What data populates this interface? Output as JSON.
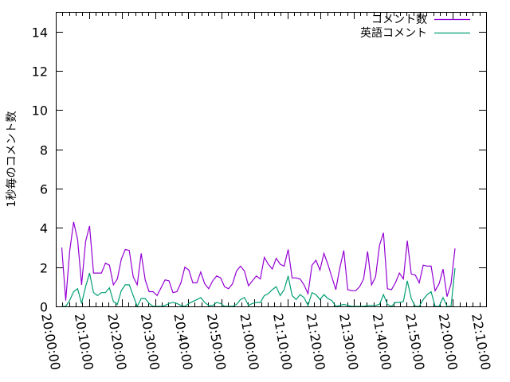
{
  "chart_data": {
    "type": "line",
    "title": "",
    "xlabel": "",
    "ylabel": "1秒毎のコメント数",
    "xlim": [
      "20:00:00",
      "22:10:00"
    ],
    "ylim": [
      0,
      15
    ],
    "x_ticks": [
      "20:00:00",
      "20:10:00",
      "20:20:00",
      "20:30:00",
      "20:40:00",
      "20:50:00",
      "21:00:00",
      "21:10:00",
      "21:20:00",
      "21:30:00",
      "21:40:00",
      "21:50:00",
      "22:00:00",
      "22:10:00"
    ],
    "y_ticks": [
      "0",
      "2",
      "4",
      "6",
      "8",
      "10",
      "12",
      "14"
    ],
    "grid": false,
    "legend_position": "top-right",
    "x": [
      "20:01:48",
      "20:03:00",
      "20:04:12",
      "20:05:24",
      "20:06:36",
      "20:07:48",
      "20:09:00",
      "20:10:12",
      "20:11:24",
      "20:12:36",
      "20:13:48",
      "20:15:00",
      "20:16:12",
      "20:17:24",
      "20:18:36",
      "20:19:48",
      "20:21:00",
      "20:22:12",
      "20:23:24",
      "20:24:36",
      "20:25:48",
      "20:27:00",
      "20:28:12",
      "20:29:24",
      "20:30:36",
      "20:31:48",
      "20:33:00",
      "20:34:12",
      "20:35:24",
      "20:36:36",
      "20:37:48",
      "20:39:00",
      "20:40:12",
      "20:41:24",
      "20:42:36",
      "20:43:48",
      "20:45:00",
      "20:46:12",
      "20:47:24",
      "20:48:36",
      "20:49:48",
      "20:51:00",
      "20:52:12",
      "20:53:24",
      "20:54:36",
      "20:55:48",
      "20:57:00",
      "20:58:12",
      "20:59:24",
      "21:00:36",
      "21:01:48",
      "21:03:00",
      "21:04:12",
      "21:05:24",
      "21:06:36",
      "21:07:48",
      "21:09:00",
      "21:10:12",
      "21:11:24",
      "21:12:36",
      "21:13:48",
      "21:15:00",
      "21:16:12",
      "21:17:24",
      "21:18:36",
      "21:19:48",
      "21:21:00",
      "21:22:12",
      "21:23:24",
      "21:24:36",
      "21:25:48",
      "21:27:00",
      "21:28:12",
      "21:29:24",
      "21:30:36",
      "21:31:48",
      "21:33:00",
      "21:34:12",
      "21:35:24",
      "21:36:36",
      "21:37:48",
      "21:39:00",
      "21:40:12",
      "21:41:24",
      "21:42:36",
      "21:43:48",
      "21:45:00",
      "21:46:12",
      "21:47:24",
      "21:48:36",
      "21:49:48",
      "21:51:00",
      "21:52:12",
      "21:53:24",
      "21:54:36",
      "21:55:48",
      "21:57:00",
      "21:58:12",
      "21:59:24",
      "22:00:36"
    ],
    "series": [
      {
        "name": "コメント数",
        "color": "#9400d3",
        "values": [
          3.0,
          0.3,
          2.8,
          4.3,
          3.4,
          1.1,
          3.3,
          4.1,
          1.7,
          1.7,
          1.7,
          2.2,
          2.1,
          1.1,
          1.4,
          2.4,
          2.9,
          2.85,
          1.5,
          1.1,
          2.7,
          1.35,
          0.75,
          0.75,
          0.55,
          0.95,
          1.35,
          1.3,
          0.7,
          0.75,
          1.2,
          2.0,
          1.85,
          1.2,
          1.2,
          1.75,
          1.15,
          0.9,
          1.3,
          1.55,
          1.45,
          1.0,
          0.9,
          1.15,
          1.8,
          2.05,
          1.8,
          1.05,
          1.3,
          1.55,
          1.4,
          2.5,
          2.15,
          1.9,
          2.45,
          2.15,
          2.05,
          2.9,
          1.45,
          1.45,
          1.4,
          1.1,
          0.65,
          2.1,
          2.35,
          1.85,
          2.7,
          2.15,
          1.5,
          0.85,
          1.95,
          2.85,
          0.85,
          0.8,
          0.8,
          1.0,
          1.4,
          2.8,
          1.1,
          1.5,
          3.1,
          3.75,
          0.9,
          0.85,
          1.2,
          1.7,
          1.4,
          3.35,
          1.65,
          1.6,
          1.2,
          2.1,
          2.05,
          2.05,
          0.8,
          1.15,
          1.9,
          0.5,
          1.15,
          2.95
        ]
      },
      {
        "name": "英語コメント",
        "color": "#009e73",
        "values": [
          0,
          0,
          0.3,
          0.75,
          0.9,
          0.15,
          1.0,
          1.7,
          0.7,
          0.55,
          0.7,
          0.7,
          0.95,
          0.25,
          0.1,
          0.8,
          1.1,
          1.1,
          0.55,
          0,
          0.4,
          0.4,
          0.15,
          0,
          0,
          0,
          0.05,
          0.15,
          0.2,
          0.15,
          0.05,
          0,
          0.15,
          0.25,
          0.35,
          0.45,
          0.2,
          0.05,
          0.05,
          0.2,
          0.15,
          0,
          0,
          0,
          0.1,
          0.35,
          0.45,
          0.05,
          0.15,
          0.2,
          0.2,
          0.55,
          0.65,
          0.85,
          1.0,
          0.55,
          0.85,
          1.55,
          0.55,
          0.35,
          0.6,
          0.45,
          0.05,
          0.7,
          0.6,
          0.35,
          0.6,
          0.4,
          0.3,
          0,
          0.05,
          0.1,
          0.05,
          0,
          0,
          0,
          0,
          0.05,
          0.05,
          0.05,
          0.1,
          0.6,
          0.1,
          0,
          0.2,
          0.2,
          0.25,
          1.3,
          0.4,
          0,
          0,
          0.35,
          0.6,
          0.75,
          0,
          0,
          0.45,
          0,
          0,
          1.95
        ]
      }
    ]
  }
}
